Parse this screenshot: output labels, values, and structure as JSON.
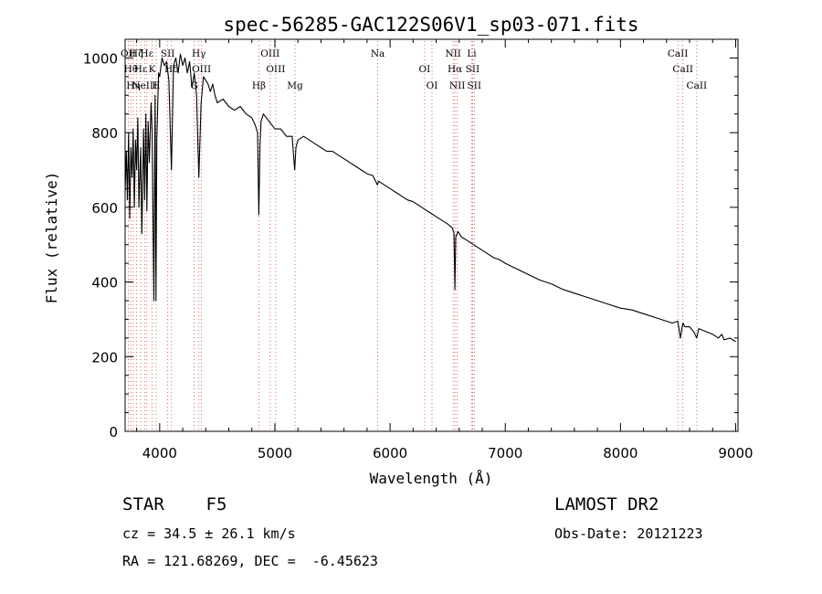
{
  "chart_data": {
    "type": "line",
    "title": "spec-56285-GAC122S06V1_sp03-071.fits",
    "xlabel": "Wavelength (Å)",
    "ylabel": "Flux (relative)",
    "xlim": [
      3700,
      9020
    ],
    "ylim": [
      0,
      1050
    ],
    "xticks": [
      4000,
      5000,
      6000,
      7000,
      8000,
      9000
    ],
    "yticks": [
      0,
      200,
      400,
      600,
      800,
      1000
    ],
    "grid": false,
    "series": [
      {
        "x": [
          3700,
          3710,
          3720,
          3730,
          3740,
          3750,
          3760,
          3770,
          3780,
          3790,
          3800,
          3810,
          3820,
          3835,
          3845,
          3860,
          3870,
          3880,
          3889,
          3900,
          3910,
          3925,
          3935,
          3950,
          3960,
          3968,
          3975,
          3990,
          4000,
          4020,
          4040,
          4060,
          4080,
          4102,
          4120,
          4140,
          4160,
          4180,
          4200,
          4220,
          4240,
          4260,
          4280,
          4300,
          4320,
          4340,
          4360,
          4380,
          4400,
          4420,
          4440,
          4460,
          4480,
          4500,
          4550,
          4600,
          4650,
          4700,
          4750,
          4800,
          4830,
          4850,
          4861,
          4870,
          4880,
          4900,
          4950,
          5000,
          5050,
          5100,
          5150,
          5167,
          5172,
          5183,
          5200,
          5250,
          5300,
          5350,
          5400,
          5450,
          5500,
          5550,
          5600,
          5650,
          5700,
          5750,
          5800,
          5850,
          5890,
          5900,
          5950,
          6000,
          6050,
          6100,
          6150,
          6200,
          6250,
          6300,
          6350,
          6400,
          6450,
          6500,
          6540,
          6555,
          6563,
          6570,
          6590,
          6620,
          6650,
          6700,
          6750,
          6800,
          6850,
          6900,
          6950,
          7000,
          7100,
          7200,
          7300,
          7400,
          7500,
          7600,
          7700,
          7800,
          7900,
          8000,
          8100,
          8200,
          8300,
          8400,
          8450,
          8498,
          8520,
          8542,
          8560,
          8600,
          8640,
          8662,
          8680,
          8720,
          8760,
          8800,
          8850,
          8880,
          8900,
          8950,
          9000
        ],
        "y": [
          640,
          750,
          620,
          800,
          570,
          760,
          680,
          810,
          600,
          780,
          700,
          840,
          600,
          760,
          530,
          810,
          620,
          850,
          590,
          830,
          720,
          880,
          800,
          350,
          900,
          350,
          780,
          960,
          950,
          1000,
          980,
          990,
          940,
          700,
          980,
          1000,
          960,
          1010,
          980,
          1000,
          960,
          990,
          920,
          960,
          900,
          680,
          880,
          950,
          940,
          930,
          910,
          930,
          900,
          880,
          890,
          870,
          860,
          870,
          850,
          840,
          820,
          800,
          580,
          760,
          830,
          850,
          830,
          810,
          810,
          790,
          790,
          720,
          700,
          760,
          780,
          790,
          780,
          770,
          760,
          750,
          750,
          740,
          730,
          720,
          710,
          700,
          690,
          685,
          660,
          670,
          660,
          650,
          640,
          630,
          620,
          615,
          605,
          595,
          585,
          575,
          565,
          555,
          545,
          530,
          380,
          520,
          535,
          520,
          515,
          505,
          495,
          485,
          475,
          465,
          460,
          450,
          435,
          420,
          405,
          395,
          380,
          370,
          360,
          350,
          340,
          330,
          325,
          315,
          305,
          295,
          290,
          295,
          250,
          290,
          280,
          280,
          265,
          250,
          275,
          270,
          265,
          260,
          250,
          260,
          245,
          250,
          240
        ]
      }
    ],
    "lines": [
      {
        "x": 3727,
        "label": "OII"
      },
      {
        "x": 3750,
        "label": "Hθ"
      },
      {
        "x": 3771,
        "label": "Hη"
      },
      {
        "x": 3798,
        "label": "Hζ"
      },
      {
        "x": 3835,
        "label": "Hε"
      },
      {
        "x": 3869,
        "label": "NeIII"
      },
      {
        "x": 3889,
        "label": "Hε"
      },
      {
        "x": 3934,
        "label": "K"
      },
      {
        "x": 3969,
        "label": "H"
      },
      {
        "x": 4070,
        "label": "SII"
      },
      {
        "x": 4102,
        "label": "Hδ"
      },
      {
        "x": 4300,
        "label": "G"
      },
      {
        "x": 4340,
        "label": "Hγ"
      },
      {
        "x": 4363,
        "label": "OIII"
      },
      {
        "x": 4861,
        "label": "Hβ"
      },
      {
        "x": 4959,
        "label": "OIII"
      },
      {
        "x": 5007,
        "label": "OIII"
      },
      {
        "x": 5175,
        "label": "Mg"
      },
      {
        "x": 5893,
        "label": "Na"
      },
      {
        "x": 6300,
        "label": "OI"
      },
      {
        "x": 6364,
        "label": "OI"
      },
      {
        "x": 6548,
        "label": "NII"
      },
      {
        "x": 6563,
        "label": "Hα"
      },
      {
        "x": 6583,
        "label": "NII"
      },
      {
        "x": 6708,
        "label": "Li"
      },
      {
        "x": 6716,
        "label": "SII"
      },
      {
        "x": 6731,
        "label": "SII"
      },
      {
        "x": 8498,
        "label": "CaII"
      },
      {
        "x": 8542,
        "label": "CaII"
      },
      {
        "x": 8662,
        "label": "CaII"
      }
    ]
  },
  "info": {
    "class_line": "STAR    F5",
    "survey": "LAMOST DR2",
    "cz": "cz = 34.5 ± 26.1 km/s",
    "obs_date": "Obs-Date: 20121223",
    "coords": "RA = 121.68269, DEC =  -6.45623"
  }
}
